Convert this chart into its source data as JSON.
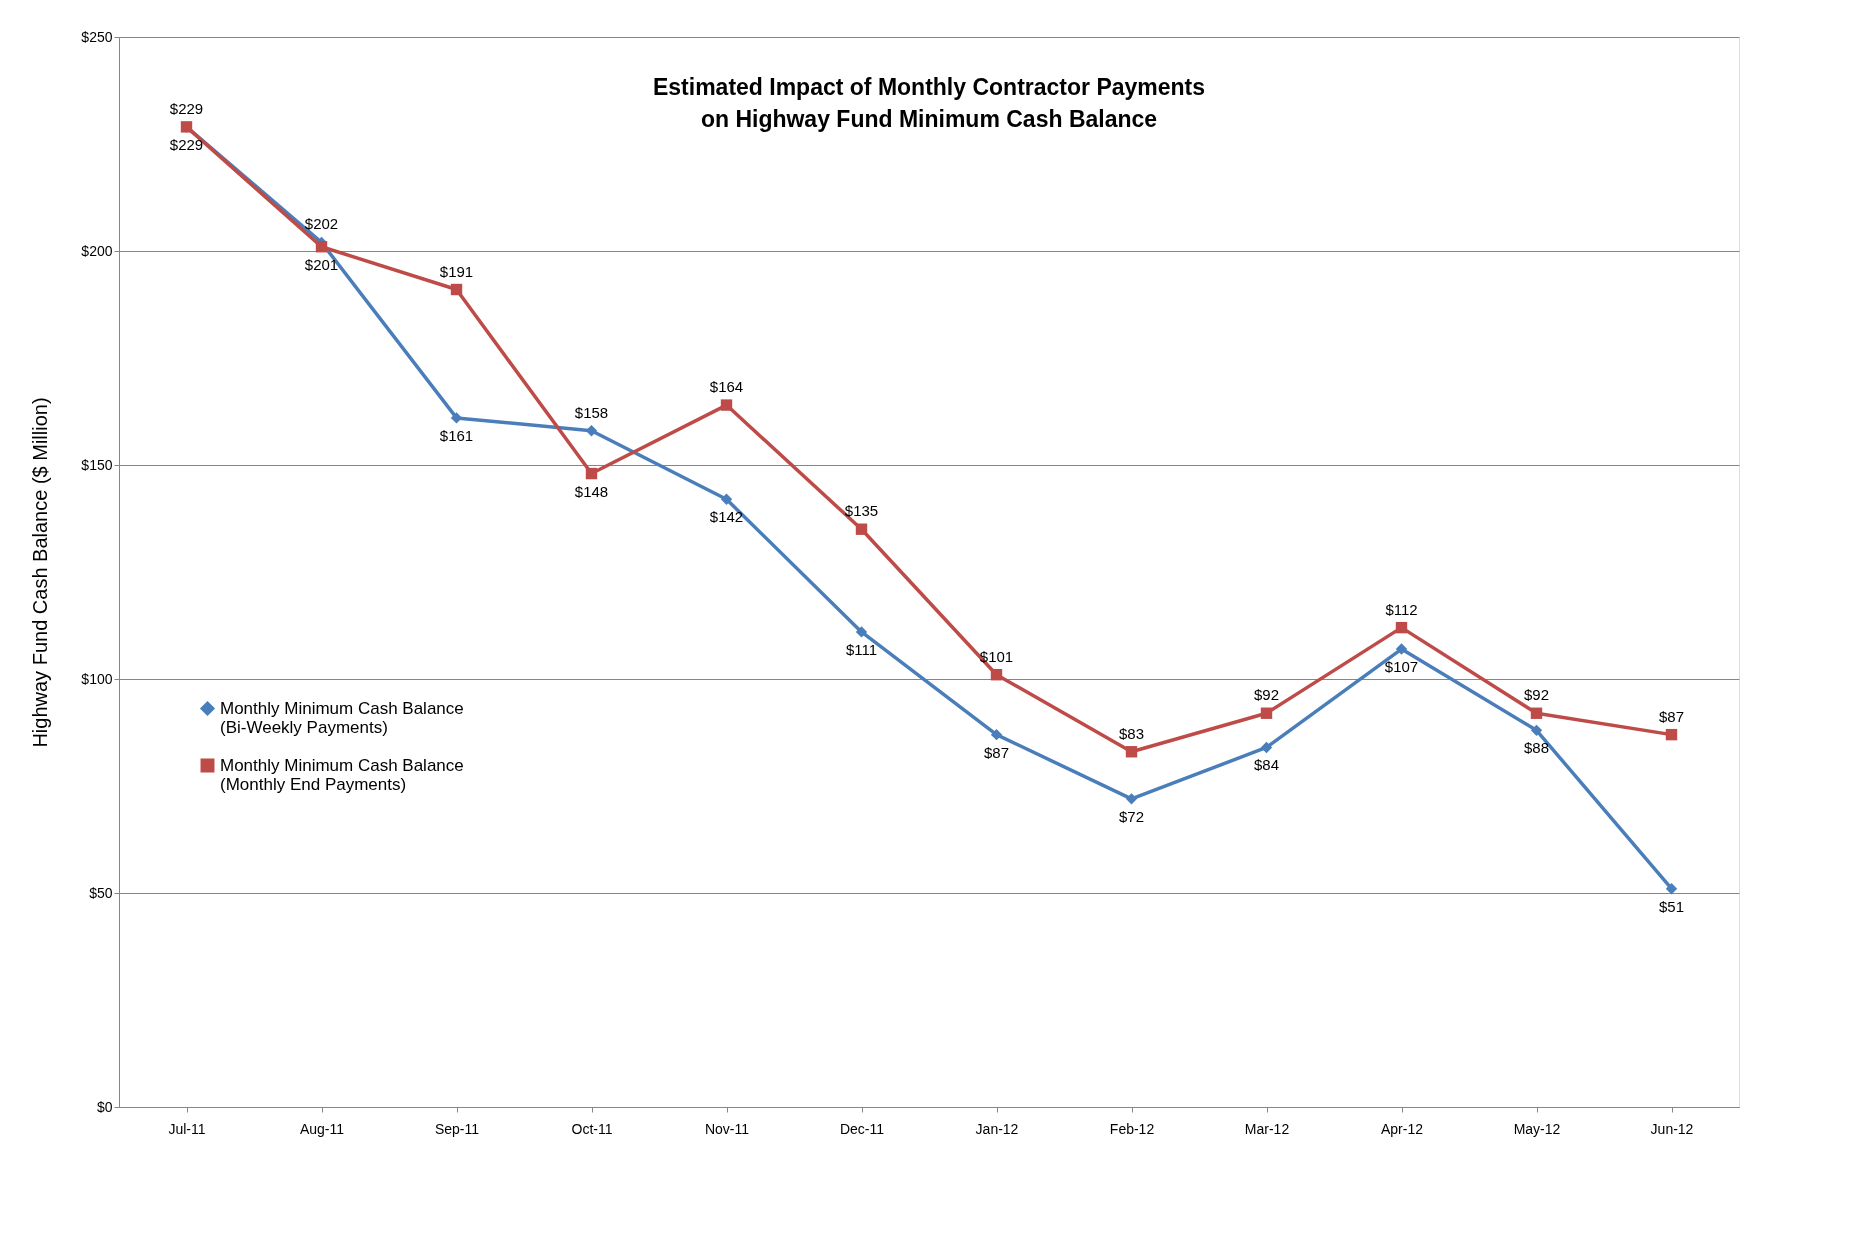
{
  "chart_data": {
    "type": "line",
    "title": "Estimated Impact of Monthly Contractor Payments\non Highway Fund Minimum Cash Balance",
    "ylabel": "Highway Fund Cash Balance ($ Million)",
    "categories": [
      "Jul-11",
      "Aug-11",
      "Sep-11",
      "Oct-11",
      "Nov-11",
      "Dec-11",
      "Jan-12",
      "Feb-12",
      "Mar-12",
      "Apr-12",
      "May-12",
      "Jun-12"
    ],
    "series": [
      {
        "name": "Monthly Minimum Cash Balance (Bi-Weekly Payments)",
        "color": "#4a7ebb",
        "marker": "diamond",
        "values": [
          229,
          202,
          161,
          158,
          142,
          111,
          87,
          72,
          84,
          107,
          88,
          51
        ],
        "value_labels": [
          "$229",
          "$202",
          "$161",
          "$158",
          "$142",
          "$111",
          "$87",
          "$72",
          "$84",
          "$107",
          "$88",
          "$51"
        ]
      },
      {
        "name": "Monthly Minimum Cash Balance (Monthly End Payments)",
        "color": "#be4b48",
        "marker": "square",
        "values": [
          229,
          201,
          191,
          148,
          164,
          135,
          101,
          83,
          92,
          112,
          92,
          87
        ],
        "value_labels": [
          "$229",
          "$201",
          "$191",
          "$148",
          "$164",
          "$135",
          "$101",
          "$83",
          "$92",
          "$112",
          "$92",
          "$87"
        ]
      }
    ],
    "ylim": [
      0,
      250
    ],
    "yticks": [
      {
        "value": 0,
        "label": "$0"
      },
      {
        "value": 50,
        "label": "$50"
      },
      {
        "value": 100,
        "label": "$100"
      },
      {
        "value": 150,
        "label": "$150"
      },
      {
        "value": 200,
        "label": "$200"
      },
      {
        "value": 250,
        "label": "$250"
      }
    ],
    "grid": "y",
    "legend": "left",
    "line_style": "solid"
  }
}
